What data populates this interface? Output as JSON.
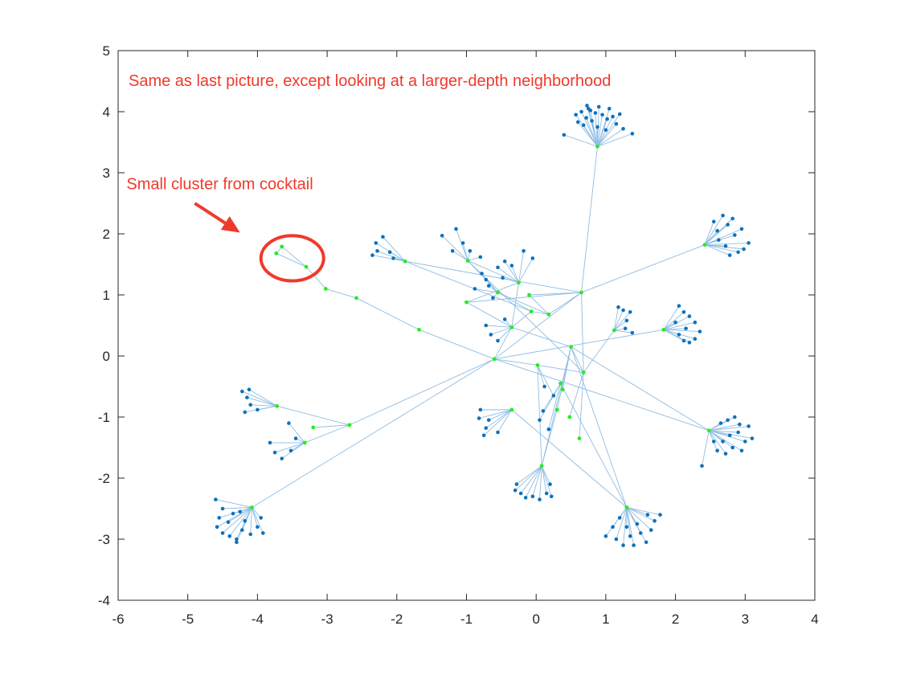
{
  "chart_data": {
    "type": "scatter",
    "title": "",
    "xlabel": "",
    "ylabel": "",
    "xlim": [
      -6,
      4
    ],
    "ylim": [
      -4,
      5
    ],
    "xticks": [
      "-6",
      "-5",
      "-4",
      "-3",
      "-2",
      "-1",
      "0",
      "1",
      "2",
      "3",
      "4"
    ],
    "yticks": [
      "-4",
      "-3",
      "-2",
      "-1",
      "0",
      "1",
      "2",
      "3",
      "4",
      "5"
    ],
    "grid": false,
    "colors": {
      "edge": "#8fbde3",
      "node": "#0b72bd",
      "highlight": "#22ee22",
      "annotation": "#f0392b",
      "axis": "#262626"
    },
    "annotations": [
      {
        "text": "Same as last picture, except looking at a larger-depth neighborhood",
        "x": -5.85,
        "y": 4.42
      },
      {
        "text": "Small cluster from cocktail",
        "x": -5.88,
        "y": 2.73
      }
    ],
    "callout": {
      "arrow_from": [
        -4.9,
        2.5
      ],
      "arrow_to": [
        -4.25,
        2.02
      ],
      "circle_center": [
        -3.5,
        1.6
      ],
      "circle_radius": [
        0.45,
        0.37
      ]
    },
    "hubs": [
      {
        "id": "A",
        "x": 0.88,
        "y": 3.43,
        "green": true
      },
      {
        "id": "B",
        "x": 2.42,
        "y": 1.82,
        "green": true
      },
      {
        "id": "C",
        "x": 1.83,
        "y": 0.43,
        "green": true
      },
      {
        "id": "D",
        "x": 1.12,
        "y": 0.42,
        "green": true
      },
      {
        "id": "E",
        "x": 2.48,
        "y": -1.22,
        "green": true
      },
      {
        "id": "F",
        "x": 1.3,
        "y": -2.48,
        "green": true
      },
      {
        "id": "G",
        "x": 0.08,
        "y": -1.8,
        "green": true
      },
      {
        "id": "H",
        "x": -0.35,
        "y": -0.88,
        "green": true
      },
      {
        "id": "I",
        "x": -4.08,
        "y": -2.48,
        "green": true
      },
      {
        "id": "J",
        "x": -3.72,
        "y": -0.82,
        "green": true
      },
      {
        "id": "K",
        "x": -3.32,
        "y": -1.42,
        "green": true
      },
      {
        "id": "L",
        "x": -1.88,
        "y": 1.55,
        "green": true
      },
      {
        "id": "M",
        "x": 0.65,
        "y": 1.04,
        "green": true
      },
      {
        "id": "N",
        "x": 0.5,
        "y": 0.15,
        "green": true
      },
      {
        "id": "O",
        "x": -0.6,
        "y": -0.05,
        "green": true
      },
      {
        "id": "P",
        "x": 0.68,
        "y": -0.27,
        "green": true
      },
      {
        "id": "Q",
        "x": -2.68,
        "y": -1.13,
        "green": true
      },
      {
        "id": "R",
        "x": -3.2,
        "y": -1.17,
        "green": true
      },
      {
        "id": "S",
        "x": -0.35,
        "y": 0.47,
        "green": true
      },
      {
        "id": "T",
        "x": -1.0,
        "y": 0.88,
        "green": true
      },
      {
        "id": "U",
        "x": 0.18,
        "y": 0.68,
        "green": true
      },
      {
        "id": "V",
        "x": -0.25,
        "y": 1.2,
        "green": true
      },
      {
        "id": "W",
        "x": -0.55,
        "y": 1.04,
        "green": true
      },
      {
        "id": "X",
        "x": -0.98,
        "y": 1.56,
        "green": true
      },
      {
        "id": "Y",
        "x": -0.1,
        "y": 1.0,
        "green": true
      },
      {
        "id": "Z",
        "x": -0.07,
        "y": 0.73,
        "green": true
      },
      {
        "id": "Z2",
        "x": 0.02,
        "y": -0.15,
        "green": true
      },
      {
        "id": "Z3",
        "x": 0.38,
        "y": -0.55,
        "green": true
      },
      {
        "id": "Z4",
        "x": 0.3,
        "y": -0.88,
        "green": true
      },
      {
        "id": "Z5",
        "x": 0.48,
        "y": -1.0,
        "green": true
      },
      {
        "id": "Z6",
        "x": 0.62,
        "y": -1.35,
        "green": true
      },
      {
        "id": "Z7",
        "x": 0.35,
        "y": -0.45,
        "green": true
      },
      {
        "id": "g1",
        "x": -1.68,
        "y": 0.43,
        "green": true
      },
      {
        "id": "g2",
        "x": -2.58,
        "y": 0.95,
        "green": true
      },
      {
        "id": "g3",
        "x": -3.02,
        "y": 1.1,
        "green": true
      },
      {
        "id": "g4",
        "x": -3.3,
        "y": 1.46,
        "green": true
      },
      {
        "id": "g5",
        "x": -3.65,
        "y": 1.79,
        "green": true
      },
      {
        "id": "g6",
        "x": -3.73,
        "y": 1.68,
        "green": true
      }
    ],
    "edges": [
      [
        "A",
        "M"
      ],
      [
        "B",
        "M"
      ],
      [
        "C",
        "O"
      ],
      [
        "D",
        "P"
      ],
      [
        "E",
        "N"
      ],
      [
        "E",
        "O"
      ],
      [
        "F",
        "N"
      ],
      [
        "F",
        "H"
      ],
      [
        "G",
        "N"
      ],
      [
        "G",
        "Z2"
      ],
      [
        "I",
        "O"
      ],
      [
        "Q",
        "O"
      ],
      [
        "J",
        "Q"
      ],
      [
        "R",
        "Q"
      ],
      [
        "K",
        "Q"
      ],
      [
        "L",
        "Z"
      ],
      [
        "L",
        "M"
      ],
      [
        "M",
        "P"
      ],
      [
        "M",
        "O"
      ],
      [
        "M",
        "T"
      ],
      [
        "N",
        "P"
      ],
      [
        "N",
        "S"
      ],
      [
        "N",
        "Z3"
      ],
      [
        "N",
        "Z4"
      ],
      [
        "O",
        "Z2"
      ],
      [
        "O",
        "S"
      ],
      [
        "O",
        "g1"
      ],
      [
        "g1",
        "g2"
      ],
      [
        "g2",
        "g3"
      ],
      [
        "g3",
        "g4"
      ],
      [
        "g4",
        "g5"
      ],
      [
        "g5",
        "g6"
      ],
      [
        "g4",
        "g6"
      ],
      [
        "S",
        "T"
      ],
      [
        "S",
        "V"
      ],
      [
        "U",
        "W"
      ],
      [
        "U",
        "Y"
      ],
      [
        "V",
        "X"
      ],
      [
        "W",
        "X"
      ],
      [
        "Y",
        "M"
      ],
      [
        "Z",
        "U"
      ],
      [
        "T",
        "V"
      ],
      [
        "P",
        "Z5"
      ],
      [
        "P",
        "Z6"
      ],
      [
        "Z3",
        "Z7"
      ],
      [
        "Z7",
        "F"
      ],
      [
        "Z4",
        "G"
      ],
      [
        "Z2",
        "P"
      ],
      [
        "W",
        "Z"
      ],
      [
        "U",
        "M"
      ],
      [
        "X",
        "P"
      ],
      [
        "S",
        "Z"
      ]
    ],
    "leaves": [
      {
        "hub": "A",
        "x": 0.4,
        "y": 3.62
      },
      {
        "hub": "A",
        "x": 0.6,
        "y": 3.83
      },
      {
        "hub": "A",
        "x": 0.57,
        "y": 3.95
      },
      {
        "hub": "A",
        "x": 0.65,
        "y": 4.0
      },
      {
        "hub": "A",
        "x": 0.72,
        "y": 3.9
      },
      {
        "hub": "A",
        "x": 0.75,
        "y": 4.05
      },
      {
        "hub": "A",
        "x": 0.68,
        "y": 3.78
      },
      {
        "hub": "A",
        "x": 0.8,
        "y": 3.85
      },
      {
        "hub": "A",
        "x": 0.85,
        "y": 3.98
      },
      {
        "hub": "A",
        "x": 0.78,
        "y": 4.02
      },
      {
        "hub": "A",
        "x": 0.9,
        "y": 4.08
      },
      {
        "hub": "A",
        "x": 0.95,
        "y": 3.95
      },
      {
        "hub": "A",
        "x": 1.02,
        "y": 3.88
      },
      {
        "hub": "A",
        "x": 1.05,
        "y": 4.05
      },
      {
        "hub": "A",
        "x": 1.1,
        "y": 3.92
      },
      {
        "hub": "A",
        "x": 1.15,
        "y": 3.8
      },
      {
        "hub": "A",
        "x": 1.2,
        "y": 3.96
      },
      {
        "hub": "A",
        "x": 1.25,
        "y": 3.72
      },
      {
        "hub": "A",
        "x": 1.38,
        "y": 3.64
      },
      {
        "hub": "A",
        "x": 1.0,
        "y": 3.7
      },
      {
        "hub": "A",
        "x": 0.73,
        "y": 4.1
      },
      {
        "hub": "A",
        "x": 0.88,
        "y": 3.75
      },
      {
        "hub": "B",
        "x": 2.55,
        "y": 2.2
      },
      {
        "hub": "B",
        "x": 2.68,
        "y": 2.3
      },
      {
        "hub": "B",
        "x": 2.75,
        "y": 2.15
      },
      {
        "hub": "B",
        "x": 2.82,
        "y": 2.25
      },
      {
        "hub": "B",
        "x": 2.6,
        "y": 2.05
      },
      {
        "hub": "B",
        "x": 2.85,
        "y": 1.98
      },
      {
        "hub": "B",
        "x": 2.95,
        "y": 2.08
      },
      {
        "hub": "B",
        "x": 3.05,
        "y": 1.85
      },
      {
        "hub": "B",
        "x": 2.98,
        "y": 1.75
      },
      {
        "hub": "B",
        "x": 2.78,
        "y": 1.65
      },
      {
        "hub": "B",
        "x": 2.9,
        "y": 1.7
      },
      {
        "hub": "B",
        "x": 2.62,
        "y": 1.9
      },
      {
        "hub": "B",
        "x": 2.72,
        "y": 1.8
      },
      {
        "hub": "C",
        "x": 2.05,
        "y": 0.82
      },
      {
        "hub": "C",
        "x": 2.12,
        "y": 0.72
      },
      {
        "hub": "C",
        "x": 2.2,
        "y": 0.65
      },
      {
        "hub": "C",
        "x": 2.28,
        "y": 0.55
      },
      {
        "hub": "C",
        "x": 2.35,
        "y": 0.4
      },
      {
        "hub": "C",
        "x": 2.28,
        "y": 0.28
      },
      {
        "hub": "C",
        "x": 2.2,
        "y": 0.22
      },
      {
        "hub": "C",
        "x": 2.12,
        "y": 0.25
      },
      {
        "hub": "C",
        "x": 2.05,
        "y": 0.35
      },
      {
        "hub": "C",
        "x": 2.0,
        "y": 0.55
      },
      {
        "hub": "C",
        "x": 2.15,
        "y": 0.45
      },
      {
        "hub": "D",
        "x": 1.18,
        "y": 0.8
      },
      {
        "hub": "D",
        "x": 1.25,
        "y": 0.75
      },
      {
        "hub": "D",
        "x": 1.35,
        "y": 0.72
      },
      {
        "hub": "D",
        "x": 1.3,
        "y": 0.58
      },
      {
        "hub": "D",
        "x": 1.38,
        "y": 0.38
      },
      {
        "hub": "D",
        "x": 1.28,
        "y": 0.45
      },
      {
        "hub": "E",
        "x": 2.65,
        "y": -1.1
      },
      {
        "hub": "E",
        "x": 2.75,
        "y": -1.05
      },
      {
        "hub": "E",
        "x": 2.85,
        "y": -1.0
      },
      {
        "hub": "E",
        "x": 2.92,
        "y": -1.12
      },
      {
        "hub": "E",
        "x": 3.05,
        "y": -1.15
      },
      {
        "hub": "E",
        "x": 3.1,
        "y": -1.35
      },
      {
        "hub": "E",
        "x": 3.0,
        "y": -1.4
      },
      {
        "hub": "E",
        "x": 2.95,
        "y": -1.55
      },
      {
        "hub": "E",
        "x": 2.82,
        "y": -1.5
      },
      {
        "hub": "E",
        "x": 2.72,
        "y": -1.6
      },
      {
        "hub": "E",
        "x": 2.6,
        "y": -1.55
      },
      {
        "hub": "E",
        "x": 2.55,
        "y": -1.4
      },
      {
        "hub": "E",
        "x": 2.38,
        "y": -1.8
      },
      {
        "hub": "E",
        "x": 2.9,
        "y": -1.25
      },
      {
        "hub": "E",
        "x": 2.78,
        "y": -1.3
      },
      {
        "hub": "E",
        "x": 2.68,
        "y": -1.4
      },
      {
        "hub": "F",
        "x": 1.0,
        "y": -2.95
      },
      {
        "hub": "F",
        "x": 1.1,
        "y": -2.8
      },
      {
        "hub": "F",
        "x": 1.15,
        "y": -3.0
      },
      {
        "hub": "F",
        "x": 1.25,
        "y": -3.1
      },
      {
        "hub": "F",
        "x": 1.35,
        "y": -2.95
      },
      {
        "hub": "F",
        "x": 1.4,
        "y": -3.1
      },
      {
        "hub": "F",
        "x": 1.5,
        "y": -2.9
      },
      {
        "hub": "F",
        "x": 1.58,
        "y": -3.05
      },
      {
        "hub": "F",
        "x": 1.65,
        "y": -2.85
      },
      {
        "hub": "F",
        "x": 1.7,
        "y": -2.7
      },
      {
        "hub": "F",
        "x": 1.78,
        "y": -2.6
      },
      {
        "hub": "F",
        "x": 1.6,
        "y": -2.6
      },
      {
        "hub": "F",
        "x": 1.45,
        "y": -2.75
      },
      {
        "hub": "F",
        "x": 1.2,
        "y": -2.65
      },
      {
        "hub": "F",
        "x": 1.3,
        "y": -2.8
      },
      {
        "hub": "G",
        "x": -0.28,
        "y": -2.1
      },
      {
        "hub": "G",
        "x": -0.22,
        "y": -2.25
      },
      {
        "hub": "G",
        "x": -0.15,
        "y": -2.32
      },
      {
        "hub": "G",
        "x": -0.05,
        "y": -2.3
      },
      {
        "hub": "G",
        "x": 0.05,
        "y": -2.35
      },
      {
        "hub": "G",
        "x": 0.15,
        "y": -2.25
      },
      {
        "hub": "G",
        "x": 0.22,
        "y": -2.3
      },
      {
        "hub": "G",
        "x": 0.2,
        "y": -2.1
      },
      {
        "hub": "G",
        "x": -0.3,
        "y": -2.2
      },
      {
        "hub": "H",
        "x": -0.8,
        "y": -0.88
      },
      {
        "hub": "H",
        "x": -0.82,
        "y": -1.02
      },
      {
        "hub": "H",
        "x": -0.72,
        "y": -1.18
      },
      {
        "hub": "H",
        "x": -0.75,
        "y": -1.3
      },
      {
        "hub": "H",
        "x": -0.55,
        "y": -1.25
      },
      {
        "hub": "H",
        "x": -0.68,
        "y": -1.05
      },
      {
        "hub": "I",
        "x": -4.6,
        "y": -2.35
      },
      {
        "hub": "I",
        "x": -4.5,
        "y": -2.5
      },
      {
        "hub": "I",
        "x": -4.55,
        "y": -2.65
      },
      {
        "hub": "I",
        "x": -4.58,
        "y": -2.8
      },
      {
        "hub": "I",
        "x": -4.5,
        "y": -2.9
      },
      {
        "hub": "I",
        "x": -4.42,
        "y": -2.72
      },
      {
        "hub": "I",
        "x": -4.35,
        "y": -2.58
      },
      {
        "hub": "I",
        "x": -4.4,
        "y": -2.95
      },
      {
        "hub": "I",
        "x": -4.3,
        "y": -3.0
      },
      {
        "hub": "I",
        "x": -4.22,
        "y": -2.85
      },
      {
        "hub": "I",
        "x": -4.18,
        "y": -2.7
      },
      {
        "hub": "I",
        "x": -4.1,
        "y": -2.92
      },
      {
        "hub": "I",
        "x": -4.0,
        "y": -2.8
      },
      {
        "hub": "I",
        "x": -3.95,
        "y": -2.65
      },
      {
        "hub": "I",
        "x": -3.92,
        "y": -2.9
      },
      {
        "hub": "I",
        "x": -4.25,
        "y": -2.55
      },
      {
        "hub": "I",
        "x": -4.3,
        "y": -3.05
      },
      {
        "hub": "J",
        "x": -4.22,
        "y": -0.58
      },
      {
        "hub": "J",
        "x": -4.12,
        "y": -0.55
      },
      {
        "hub": "J",
        "x": -4.15,
        "y": -0.68
      },
      {
        "hub": "J",
        "x": -4.1,
        "y": -0.8
      },
      {
        "hub": "J",
        "x": -4.18,
        "y": -0.92
      },
      {
        "hub": "J",
        "x": -4.0,
        "y": -0.88
      },
      {
        "hub": "K",
        "x": -3.82,
        "y": -1.42
      },
      {
        "hub": "K",
        "x": -3.75,
        "y": -1.58
      },
      {
        "hub": "K",
        "x": -3.65,
        "y": -1.68
      },
      {
        "hub": "K",
        "x": -3.52,
        "y": -1.55
      },
      {
        "hub": "K",
        "x": -3.45,
        "y": -1.35
      },
      {
        "hub": "K",
        "x": -3.55,
        "y": -1.1
      },
      {
        "hub": "L",
        "x": -2.35,
        "y": 1.65
      },
      {
        "hub": "L",
        "x": -2.3,
        "y": 1.85
      },
      {
        "hub": "L",
        "x": -2.2,
        "y": 1.95
      },
      {
        "hub": "L",
        "x": -2.28,
        "y": 1.72
      },
      {
        "hub": "L",
        "x": -2.05,
        "y": 1.6
      },
      {
        "hub": "L",
        "x": -2.1,
        "y": 1.7
      },
      {
        "hub": "X",
        "x": -1.35,
        "y": 1.97
      },
      {
        "hub": "X",
        "x": -1.15,
        "y": 2.08
      },
      {
        "hub": "X",
        "x": -1.05,
        "y": 1.85
      },
      {
        "hub": "X",
        "x": -0.95,
        "y": 1.72
      },
      {
        "hub": "X",
        "x": -1.2,
        "y": 1.72
      },
      {
        "hub": "X",
        "x": -0.8,
        "y": 1.62
      },
      {
        "hub": "V",
        "x": -0.18,
        "y": 1.72
      },
      {
        "hub": "V",
        "x": -0.05,
        "y": 1.6
      },
      {
        "hub": "V",
        "x": -0.55,
        "y": 1.45
      },
      {
        "hub": "V",
        "x": -0.45,
        "y": 1.55
      },
      {
        "hub": "V",
        "x": -0.35,
        "y": 1.48
      },
      {
        "hub": "V",
        "x": -0.48,
        "y": 1.28
      },
      {
        "hub": "W",
        "x": -0.88,
        "y": 1.1
      },
      {
        "hub": "W",
        "x": -0.72,
        "y": 1.25
      },
      {
        "hub": "W",
        "x": -0.68,
        "y": 1.15
      },
      {
        "hub": "W",
        "x": -0.62,
        "y": 0.95
      },
      {
        "hub": "W",
        "x": -0.78,
        "y": 1.35
      },
      {
        "hub": "S",
        "x": -0.72,
        "y": 0.5
      },
      {
        "hub": "S",
        "x": -0.65,
        "y": 0.35
      },
      {
        "hub": "S",
        "x": -0.55,
        "y": 0.25
      },
      {
        "hub": "S",
        "x": -0.45,
        "y": 0.6
      },
      {
        "hub": "Z2",
        "x": 0.12,
        "y": -0.5
      },
      {
        "hub": "Z2",
        "x": 0.25,
        "y": -0.65
      },
      {
        "hub": "Z7",
        "x": 0.1,
        "y": -0.9
      },
      {
        "hub": "Z7",
        "x": 0.05,
        "y": -1.05
      },
      {
        "hub": "Z7",
        "x": 0.18,
        "y": -1.2
      }
    ]
  }
}
